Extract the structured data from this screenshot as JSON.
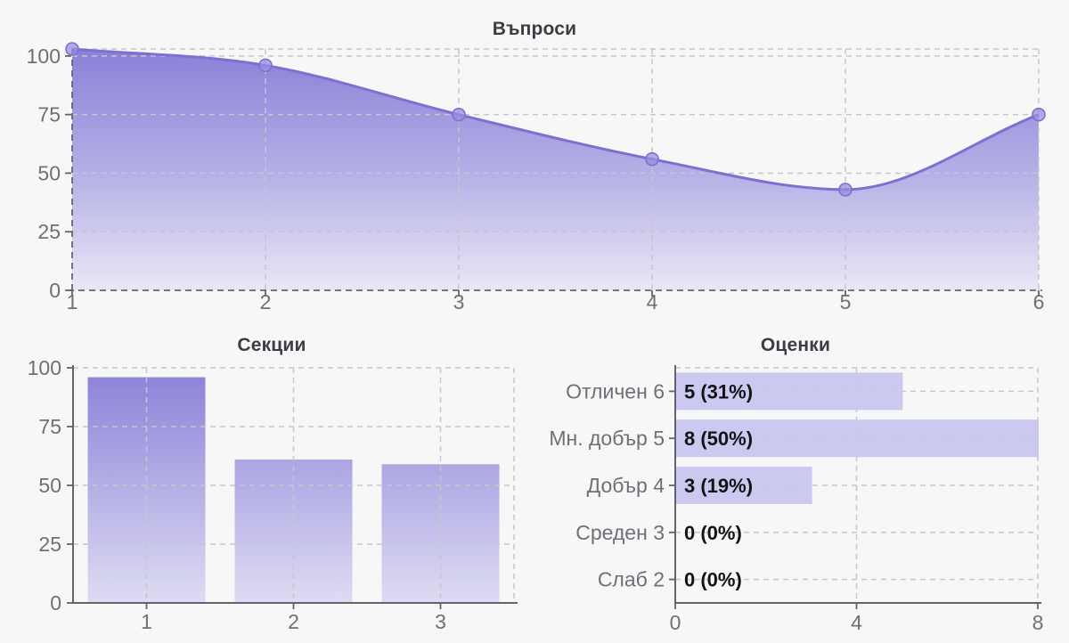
{
  "page": {
    "background": "#f7f7f8"
  },
  "chart_data": [
    {
      "id": "questions",
      "type": "area",
      "title": "Въпроси",
      "x": [
        1,
        2,
        3,
        4,
        5,
        6
      ],
      "xtick_labels": [
        "1",
        "2",
        "3",
        "4",
        "5",
        "6"
      ],
      "values": [
        103,
        96,
        75,
        56,
        43,
        75
      ],
      "ylim": [
        0,
        103
      ],
      "yticks": [
        0,
        25,
        50,
        75,
        100
      ],
      "grid": true,
      "legend": false
    },
    {
      "id": "sections",
      "type": "bar",
      "title": "Секции",
      "categories": [
        "1",
        "2",
        "3"
      ],
      "values": [
        96,
        61,
        59
      ],
      "ylim": [
        0,
        100
      ],
      "yticks": [
        0,
        25,
        50,
        75,
        100
      ],
      "grid": true,
      "legend": false
    },
    {
      "id": "grades",
      "type": "horizontal-bar",
      "title": "Оценки",
      "categories": [
        "Отличен 6",
        "Мн. добър 5",
        "Добър 4",
        "Среден 3",
        "Слаб 2"
      ],
      "values": [
        5,
        8,
        3,
        0,
        0
      ],
      "value_labels": [
        "5 (31%)",
        "8 (50%)",
        "3 (19%)",
        "0 (0%)",
        "0 (0%)"
      ],
      "xlim": [
        0,
        8
      ],
      "xticks": [
        0,
        4,
        8
      ],
      "grid": true,
      "legend": false
    }
  ],
  "style": {
    "background": "#f7f7f8",
    "accent": "#7a71d0",
    "area_gradient": [
      "#8a81d8",
      "#b5b0e6",
      "#e9e7f6"
    ],
    "bar_gradient": [
      "#8a81d8",
      "#b5b0e6",
      "#dedcf3"
    ],
    "flat_bar": "#c8c4f0",
    "line": "#7a71d0",
    "point_fill": "#988fdd",
    "grid_line": "#c6c6cd",
    "axis_line": "#63636b",
    "dark_dash": "#66666e",
    "tick_text": "#6f6f78",
    "title_text": "#3c3c45",
    "value_text": "#131316"
  }
}
